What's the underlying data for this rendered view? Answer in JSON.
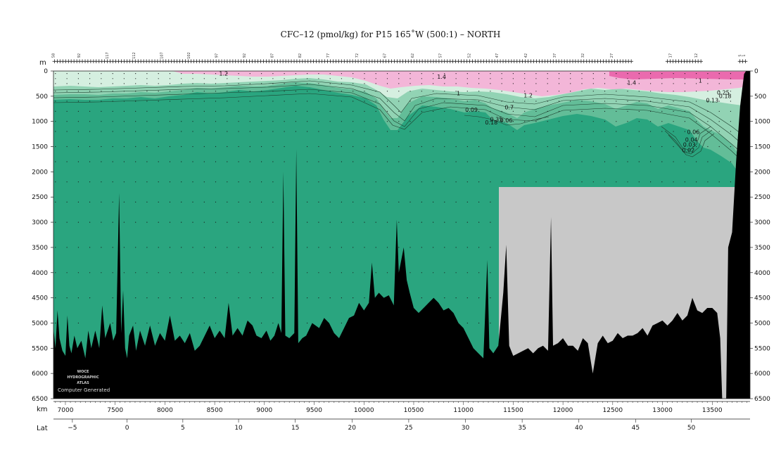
{
  "chart_data": {
    "type": "section",
    "title": "CFC–12 (pmol/kg) for P15 165˚W (500:1) – NORTH",
    "ylabel": "m",
    "xlabel": "km",
    "x2label": "Lat",
    "xlim": [
      6880,
      13880
    ],
    "ylim": [
      0,
      6500
    ],
    "yticks": [
      0,
      500,
      1000,
      1500,
      2000,
      2500,
      3000,
      3500,
      4000,
      4500,
      5000,
      5500,
      6000,
      6500
    ],
    "xticks": [
      7000,
      7500,
      8000,
      8500,
      9000,
      9500,
      10000,
      10500,
      11000,
      11500,
      12000,
      12500,
      13000,
      13500
    ],
    "lat_ticks": [
      {
        "label": "−5",
        "km": 7070
      },
      {
        "label": "0",
        "km": 7620
      },
      {
        "label": "5",
        "km": 8180
      },
      {
        "label": "10",
        "km": 8740
      },
      {
        "label": "15",
        "km": 9310
      },
      {
        "label": "20",
        "km": 9880
      },
      {
        "label": "25",
        "km": 10450
      },
      {
        "label": "30",
        "km": 11020
      },
      {
        "label": "35",
        "km": 11590
      },
      {
        "label": "40",
        "km": 12160
      },
      {
        "label": "45",
        "km": 12730
      },
      {
        "label": "50",
        "km": 13290
      }
    ],
    "station_labels": [
      {
        "label": "58",
        "km": 6890
      },
      {
        "label": "92",
        "km": 7150
      },
      {
        "label": "117",
        "km": 7430
      },
      {
        "label": "112",
        "km": 7700
      },
      {
        "label": "107",
        "km": 7980
      },
      {
        "label": "102",
        "km": 8250
      },
      {
        "label": "97",
        "km": 8530
      },
      {
        "label": "92",
        "km": 8810
      },
      {
        "label": "87",
        "km": 9090
      },
      {
        "label": "82",
        "km": 9370
      },
      {
        "label": "77",
        "km": 9650
      },
      {
        "label": "72",
        "km": 9940
      },
      {
        "label": "67",
        "km": 10220
      },
      {
        "label": "62",
        "km": 10500
      },
      {
        "label": "57",
        "km": 10780
      },
      {
        "label": "52",
        "km": 11070
      },
      {
        "label": "47",
        "km": 11350
      },
      {
        "label": "42",
        "km": 11640
      },
      {
        "label": "37",
        "km": 11930
      },
      {
        "label": "32",
        "km": 12210
      },
      {
        "label": "27",
        "km": 12500
      },
      {
        "label": "17",
        "km": 13090
      },
      {
        "label": "12",
        "km": 13350
      },
      {
        "label": "5",
        "km": 13790
      },
      {
        "label": "1",
        "km": 13830
      }
    ],
    "contour_labels": [
      {
        "text": "1.2",
        "km": 8590,
        "depth": 90
      },
      {
        "text": "1.4",
        "km": 10780,
        "depth": 150
      },
      {
        "text": "1",
        "km": 10950,
        "depth": 480
      },
      {
        "text": "1.2",
        "km": 11650,
        "depth": 520
      },
      {
        "text": "1.4",
        "km": 12690,
        "depth": 270
      },
      {
        "text": "1",
        "km": 13380,
        "depth": 230
      },
      {
        "text": "0.7",
        "km": 11460,
        "depth": 760
      },
      {
        "text": "0.09",
        "km": 11080,
        "depth": 810
      },
      {
        "text": "0.35",
        "km": 11330,
        "depth": 1000
      },
      {
        "text": "0.06",
        "km": 11430,
        "depth": 1020
      },
      {
        "text": "0.18",
        "km": 11280,
        "depth": 1060
      },
      {
        "text": "0.25",
        "km": 13610,
        "depth": 470
      },
      {
        "text": "0.18",
        "km": 13630,
        "depth": 540
      },
      {
        "text": "0.13",
        "km": 13500,
        "depth": 620
      },
      {
        "text": "0.06",
        "km": 13310,
        "depth": 1250
      },
      {
        "text": "0.04",
        "km": 13290,
        "depth": 1400
      },
      {
        "text": "0.03",
        "km": 13270,
        "depth": 1500
      },
      {
        "text": "0.02",
        "km": 13260,
        "depth": 1610
      }
    ],
    "colors": {
      "deep": "#2aa57f",
      "mid": "#63bd98",
      "shelf": "#92d3b4",
      "surface": "#d5efe0",
      "pink": "#f3b6d8",
      "pink_strong": "#ea6aae",
      "bathymetry": "#000000",
      "no_data": "#c8c8c8",
      "contour": "#1c3d2c"
    },
    "bathymetry_depth": [
      [
        6880,
        5100
      ],
      [
        6900,
        5500
      ],
      [
        6920,
        4750
      ],
      [
        6940,
        5300
      ],
      [
        6970,
        5550
      ],
      [
        7000,
        5650
      ],
      [
        7020,
        4850
      ],
      [
        7040,
        5450
      ],
      [
        7060,
        5600
      ],
      [
        7090,
        5250
      ],
      [
        7120,
        5500
      ],
      [
        7160,
        5350
      ],
      [
        7200,
        5700
      ],
      [
        7230,
        5150
      ],
      [
        7260,
        5500
      ],
      [
        7300,
        5150
      ],
      [
        7340,
        5500
      ],
      [
        7370,
        4650
      ],
      [
        7400,
        5300
      ],
      [
        7450,
        5000
      ],
      [
        7480,
        5350
      ],
      [
        7510,
        5200
      ],
      [
        7540,
        2420
      ],
      [
        7560,
        5200
      ],
      [
        7580,
        4350
      ],
      [
        7600,
        5500
      ],
      [
        7620,
        5700
      ],
      [
        7640,
        5250
      ],
      [
        7680,
        5050
      ],
      [
        7710,
        5550
      ],
      [
        7750,
        5150
      ],
      [
        7800,
        5450
      ],
      [
        7850,
        5050
      ],
      [
        7900,
        5450
      ],
      [
        7950,
        5200
      ],
      [
        8000,
        5350
      ],
      [
        8050,
        4850
      ],
      [
        8100,
        5350
      ],
      [
        8150,
        5250
      ],
      [
        8200,
        5400
      ],
      [
        8250,
        5200
      ],
      [
        8300,
        5550
      ],
      [
        8350,
        5450
      ],
      [
        8400,
        5250
      ],
      [
        8450,
        5050
      ],
      [
        8500,
        5300
      ],
      [
        8550,
        5150
      ],
      [
        8600,
        5300
      ],
      [
        8640,
        4600
      ],
      [
        8680,
        5250
      ],
      [
        8730,
        5100
      ],
      [
        8780,
        5250
      ],
      [
        8830,
        4950
      ],
      [
        8880,
        5050
      ],
      [
        8920,
        5250
      ],
      [
        8970,
        5300
      ],
      [
        9020,
        5150
      ],
      [
        9060,
        5350
      ],
      [
        9100,
        5250
      ],
      [
        9140,
        5000
      ],
      [
        9170,
        5200
      ],
      [
        9190,
        2000
      ],
      [
        9210,
        5250
      ],
      [
        9250,
        5300
      ],
      [
        9300,
        5200
      ],
      [
        9320,
        1550
      ],
      [
        9340,
        5400
      ],
      [
        9380,
        5300
      ],
      [
        9420,
        5250
      ],
      [
        9480,
        5000
      ],
      [
        9550,
        5100
      ],
      [
        9600,
        4900
      ],
      [
        9650,
        5000
      ],
      [
        9700,
        5200
      ],
      [
        9750,
        5300
      ],
      [
        9800,
        5100
      ],
      [
        9850,
        4900
      ],
      [
        9900,
        4850
      ],
      [
        9950,
        4600
      ],
      [
        10000,
        4750
      ],
      [
        10050,
        4600
      ],
      [
        10080,
        3800
      ],
      [
        10110,
        4500
      ],
      [
        10150,
        4400
      ],
      [
        10200,
        4500
      ],
      [
        10250,
        4450
      ],
      [
        10300,
        4650
      ],
      [
        10330,
        2950
      ],
      [
        10350,
        4000
      ],
      [
        10400,
        3500
      ],
      [
        10430,
        4150
      ],
      [
        10460,
        4400
      ],
      [
        10500,
        4700
      ],
      [
        10550,
        4800
      ],
      [
        10600,
        4700
      ],
      [
        10650,
        4600
      ],
      [
        10700,
        4500
      ],
      [
        10750,
        4600
      ],
      [
        10800,
        4750
      ],
      [
        10850,
        4700
      ],
      [
        10900,
        4800
      ],
      [
        10950,
        5000
      ],
      [
        11000,
        5100
      ],
      [
        11050,
        5300
      ],
      [
        11100,
        5500
      ],
      [
        11150,
        5600
      ],
      [
        11200,
        5700
      ],
      [
        11240,
        3750
      ],
      [
        11260,
        5500
      ],
      [
        11300,
        5600
      ],
      [
        11350,
        5450
      ],
      [
        11400,
        4400
      ],
      [
        11430,
        3450
      ],
      [
        11460,
        5450
      ],
      [
        11500,
        5650
      ],
      [
        11550,
        5600
      ],
      [
        11600,
        5550
      ],
      [
        11650,
        5500
      ],
      [
        11700,
        5600
      ],
      [
        11750,
        5500
      ],
      [
        11800,
        5450
      ],
      [
        11850,
        5550
      ],
      [
        11880,
        2900
      ],
      [
        11900,
        5450
      ],
      [
        11950,
        5400
      ],
      [
        12000,
        5300
      ],
      [
        12050,
        5450
      ],
      [
        12100,
        5450
      ],
      [
        12150,
        5550
      ],
      [
        12200,
        5300
      ],
      [
        12250,
        5400
      ],
      [
        12300,
        6000
      ],
      [
        12350,
        5400
      ],
      [
        12400,
        5250
      ],
      [
        12450,
        5400
      ],
      [
        12500,
        5350
      ],
      [
        12550,
        5200
      ],
      [
        12600,
        5300
      ],
      [
        12650,
        5250
      ],
      [
        12700,
        5250
      ],
      [
        12750,
        5200
      ],
      [
        12800,
        5100
      ],
      [
        12850,
        5250
      ],
      [
        12900,
        5050
      ],
      [
        12950,
        5000
      ],
      [
        13000,
        4950
      ],
      [
        13050,
        5050
      ],
      [
        13100,
        4950
      ],
      [
        13150,
        4800
      ],
      [
        13200,
        4950
      ],
      [
        13250,
        4850
      ],
      [
        13300,
        4500
      ],
      [
        13350,
        4750
      ],
      [
        13400,
        4800
      ],
      [
        13450,
        4700
      ],
      [
        13500,
        4700
      ],
      [
        13550,
        4800
      ],
      [
        13580,
        5300
      ],
      [
        13600,
        6500
      ],
      [
        13640,
        6500
      ],
      [
        13660,
        3500
      ],
      [
        13700,
        3200
      ],
      [
        13740,
        1800
      ],
      [
        13780,
        700
      ],
      [
        13820,
        60
      ],
      [
        13840,
        0
      ],
      [
        13880,
        0
      ]
    ],
    "watermark": [
      "WOCE",
      "HYDROGRAPHIC",
      "ATLAS",
      "Computer Generated"
    ]
  }
}
